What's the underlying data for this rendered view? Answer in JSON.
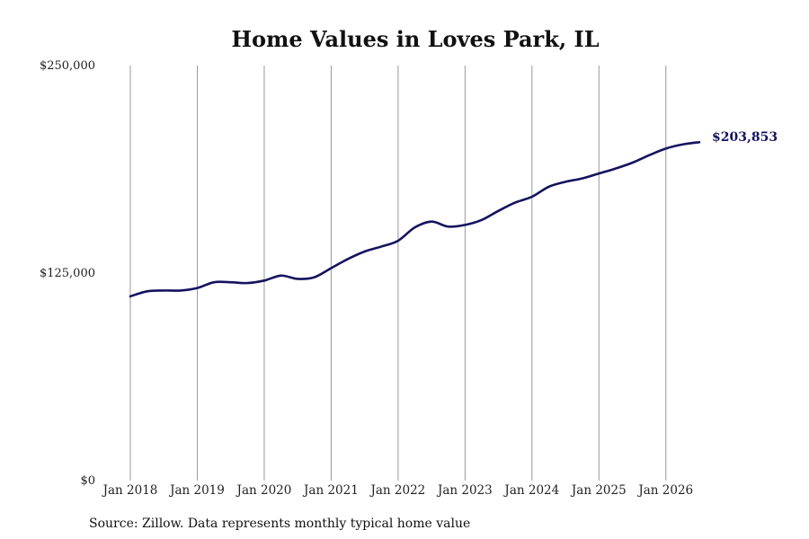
{
  "chart_data": {
    "type": "line",
    "title": "Home Values in Loves Park, IL",
    "xlabel": "",
    "ylabel": "",
    "x_ticks": [
      {
        "date": "2018-01",
        "label": "Jan 2018"
      },
      {
        "date": "2019-01",
        "label": "Jan 2019"
      },
      {
        "date": "2020-01",
        "label": "Jan 2020"
      },
      {
        "date": "2021-01",
        "label": "Jan 2021"
      },
      {
        "date": "2022-01",
        "label": "Jan 2022"
      },
      {
        "date": "2023-01",
        "label": "Jan 2023"
      },
      {
        "date": "2024-01",
        "label": "Jan 2024"
      },
      {
        "date": "2025-01",
        "label": "Jan 2025"
      },
      {
        "date": "2026-01",
        "label": "Jan 2026"
      }
    ],
    "y_ticks": [
      {
        "value": 0,
        "label": "$0"
      },
      {
        "value": 125000,
        "label": "$125,000"
      },
      {
        "value": 250000,
        "label": "$250,000"
      }
    ],
    "ylim": [
      0,
      250000
    ],
    "xlim": [
      "2018-01",
      "2026-07"
    ],
    "grid": "vertical lines at each year tick",
    "line_color": "#15125e",
    "end_label": "$203,853",
    "series": [
      {
        "points": [
          {
            "x": "2018-01",
            "y": 111000
          },
          {
            "x": "2018-04",
            "y": 114000
          },
          {
            "x": "2018-07",
            "y": 114500
          },
          {
            "x": "2018-10",
            "y": 114500
          },
          {
            "x": "2019-01",
            "y": 116000
          },
          {
            "x": "2019-04",
            "y": 119500
          },
          {
            "x": "2019-07",
            "y": 119500
          },
          {
            "x": "2019-10",
            "y": 119000
          },
          {
            "x": "2020-01",
            "y": 120500
          },
          {
            "x": "2020-04",
            "y": 123500
          },
          {
            "x": "2020-07",
            "y": 121500
          },
          {
            "x": "2020-10",
            "y": 122500
          },
          {
            "x": "2021-01",
            "y": 128000
          },
          {
            "x": "2021-04",
            "y": 133500
          },
          {
            "x": "2021-07",
            "y": 138000
          },
          {
            "x": "2021-10",
            "y": 141000
          },
          {
            "x": "2022-01",
            "y": 144500
          },
          {
            "x": "2022-04",
            "y": 152500
          },
          {
            "x": "2022-07",
            "y": 156000
          },
          {
            "x": "2022-10",
            "y": 153000
          },
          {
            "x": "2023-01",
            "y": 154000
          },
          {
            "x": "2023-04",
            "y": 157000
          },
          {
            "x": "2023-07",
            "y": 162500
          },
          {
            "x": "2023-10",
            "y": 167500
          },
          {
            "x": "2024-01",
            "y": 171000
          },
          {
            "x": "2024-04",
            "y": 177000
          },
          {
            "x": "2024-07",
            "y": 180000
          },
          {
            "x": "2024-10",
            "y": 182000
          },
          {
            "x": "2025-01",
            "y": 185000
          },
          {
            "x": "2025-04",
            "y": 188000
          },
          {
            "x": "2025-07",
            "y": 191500
          },
          {
            "x": "2025-10",
            "y": 196000
          },
          {
            "x": "2026-01",
            "y": 200000
          },
          {
            "x": "2026-04",
            "y": 202500
          },
          {
            "x": "2026-07",
            "y": 203853
          }
        ]
      }
    ]
  },
  "footer": {
    "source": "Source: Zillow. Data represents monthly typical home value"
  }
}
